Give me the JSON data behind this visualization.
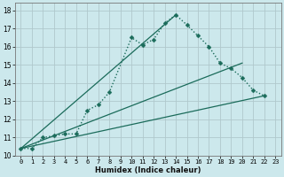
{
  "xlabel": "Humidex (Indice chaleur)",
  "background_color": "#cce8ec",
  "grid_color": "#b0c8cc",
  "line_color": "#1a6b5a",
  "xlim": [
    -0.5,
    23.5
  ],
  "ylim": [
    10,
    18.4
  ],
  "xtick_labels": [
    "0",
    "1",
    "2",
    "3",
    "4",
    "5",
    "6",
    "7",
    "8",
    "9",
    "10",
    "11",
    "12",
    "13",
    "14",
    "15",
    "16",
    "17",
    "18",
    "19",
    "20",
    "21",
    "22",
    "23"
  ],
  "xtick_values": [
    0,
    1,
    2,
    3,
    4,
    5,
    6,
    7,
    8,
    9,
    10,
    11,
    12,
    13,
    14,
    15,
    16,
    17,
    18,
    19,
    20,
    21,
    22,
    23
  ],
  "ytick_values": [
    10,
    11,
    12,
    13,
    14,
    15,
    16,
    17,
    18
  ],
  "main_series_x": [
    0,
    1,
    2,
    3,
    4,
    5,
    6,
    7,
    8,
    10,
    11,
    12,
    13,
    14,
    15,
    16,
    17,
    18,
    19,
    20,
    21,
    22
  ],
  "main_series_y": [
    10.4,
    10.4,
    11.0,
    11.1,
    11.2,
    11.2,
    12.5,
    12.8,
    13.5,
    16.5,
    16.1,
    16.4,
    17.3,
    17.75,
    17.2,
    16.6,
    16.0,
    15.1,
    14.8,
    14.3,
    13.6,
    13.3
  ],
  "line1_x": [
    0,
    22
  ],
  "line1_y": [
    10.4,
    13.3
  ],
  "line2_x": [
    0,
    20
  ],
  "line2_y": [
    10.4,
    15.1
  ],
  "line3_x": [
    0,
    14
  ],
  "line3_y": [
    10.4,
    17.75
  ]
}
